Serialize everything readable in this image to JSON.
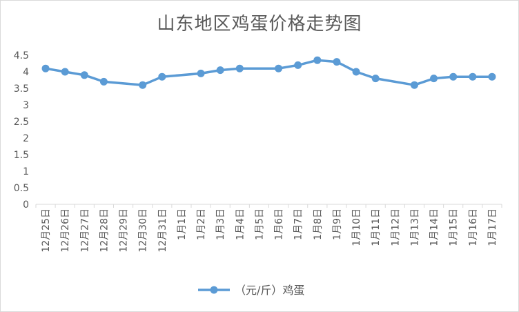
{
  "chart_data": {
    "type": "line",
    "title": "山东地区鸡蛋价格走势图",
    "categories": [
      "12月25日",
      "12月26日",
      "12月27日",
      "12月28日",
      "12月29日",
      "12月30日",
      "12月31日",
      "1月1日",
      "1月2日",
      "1月3日",
      "1月4日",
      "1月5日",
      "1月6日",
      "1月7日",
      "1月8日",
      "1月9日",
      "1月10日",
      "1月11日",
      "1月12日",
      "1月13日",
      "1月14日",
      "1月15日",
      "1月16日",
      "1月17日"
    ],
    "series": [
      {
        "name": "（元/斤）鸡蛋",
        "color": "#5b9bd5",
        "points": [
          {
            "x": "12月25日",
            "y": 4.1
          },
          {
            "x": "12月26日",
            "y": 4.0
          },
          {
            "x": "12月27日",
            "y": 3.9
          },
          {
            "x": "12月28日",
            "y": 3.7
          },
          {
            "x": "12月30日",
            "y": 3.6
          },
          {
            "x": "12月31日",
            "y": 3.85
          },
          {
            "x": "1月2日",
            "y": 3.95
          },
          {
            "x": "1月3日",
            "y": 4.05
          },
          {
            "x": "1月4日",
            "y": 4.1
          },
          {
            "x": "1月6日",
            "y": 4.1
          },
          {
            "x": "1月7日",
            "y": 4.2
          },
          {
            "x": "1月8日",
            "y": 4.35
          },
          {
            "x": "1月9日",
            "y": 4.3
          },
          {
            "x": "1月10日",
            "y": 4.0
          },
          {
            "x": "1月11日",
            "y": 3.8
          },
          {
            "x": "1月13日",
            "y": 3.6
          },
          {
            "x": "1月14日",
            "y": 3.8
          },
          {
            "x": "1月15日",
            "y": 3.85
          },
          {
            "x": "1月16日",
            "y": 3.85
          },
          {
            "x": "1月17日",
            "y": 3.85
          }
        ]
      }
    ],
    "yticks": [
      "0",
      "0.5",
      "1",
      "1.5",
      "2",
      "2.5",
      "3",
      "3.5",
      "4",
      "4.5"
    ],
    "ylim": [
      0,
      4.5
    ],
    "grid": false,
    "legend_position": "bottom"
  }
}
